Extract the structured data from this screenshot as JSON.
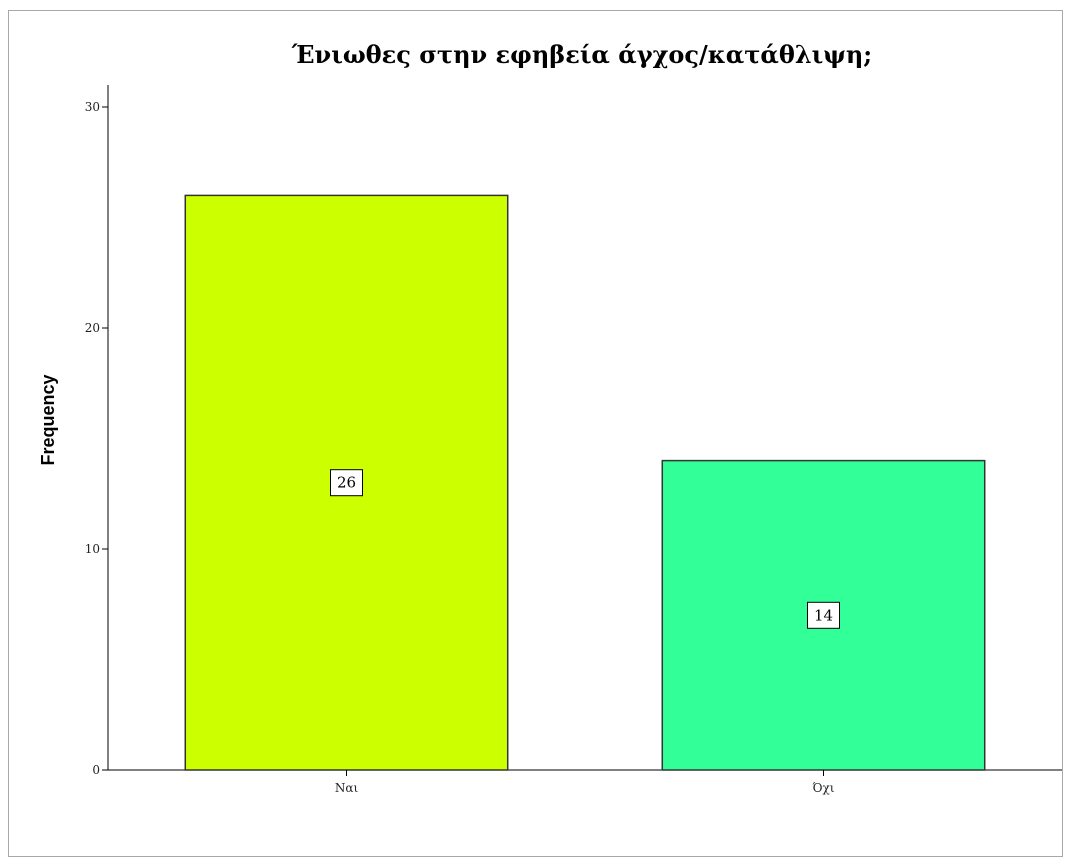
{
  "chart_data": {
    "type": "bar",
    "title": "Ένιωθες στην εφηβεία άγχος/κατάθλιψη;",
    "xlabel": "",
    "ylabel": "Frequency",
    "categories": [
      "Ναι",
      "Όχι"
    ],
    "values": [
      26,
      14
    ],
    "data_labels": [
      "26",
      "14"
    ],
    "colors": [
      "#ccff00",
      "#33ff99"
    ],
    "ylim": [
      0,
      30
    ],
    "yticks": [
      0,
      10,
      20,
      30
    ],
    "ytick_labels": [
      "0",
      "10",
      "20",
      "30"
    ],
    "grid": false,
    "legend": "none"
  }
}
